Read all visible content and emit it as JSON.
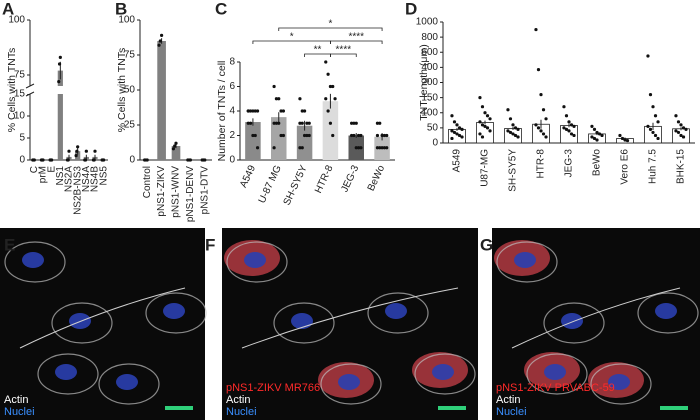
{
  "chart_data": [
    {
      "type": "bar",
      "label": "A",
      "y_label": "% Cells with TNTs",
      "categories": [
        "C",
        "prM",
        "E",
        "NS1",
        "NS2A",
        "NS2B-NS3",
        "NS4A",
        "NS4B",
        "NS5"
      ],
      "values": [
        0,
        0,
        0,
        77,
        0.7,
        2,
        0.7,
        0.7,
        0
      ],
      "errors": [
        0,
        0,
        0,
        4,
        0.5,
        0.8,
        0.5,
        0.5,
        0
      ],
      "points": [
        [
          0,
          0,
          0
        ],
        [
          0,
          0,
          0
        ],
        [
          0,
          0,
          0
        ],
        [
          72,
          80,
          83
        ],
        [
          0,
          0,
          2
        ],
        [
          1,
          2,
          3
        ],
        [
          0,
          0,
          2
        ],
        [
          0,
          0,
          2
        ],
        [
          0,
          0,
          0
        ]
      ],
      "color": "#808080",
      "ylim": [
        0,
        100
      ],
      "ysegments": [
        [
          0,
          15
        ],
        [
          70,
          100
        ]
      ],
      "yticks": [
        0,
        5,
        10,
        15,
        75,
        100
      ]
    },
    {
      "type": "bar",
      "label": "B",
      "y_label": "% Cells with TNTs",
      "categories": [
        "Control",
        "pNS1-ZIKV",
        "pNS1-WNV",
        "pNS1-DENV",
        "pNS1-DTV"
      ],
      "values": [
        0,
        85,
        10,
        0,
        0
      ],
      "errors": [
        0,
        2,
        1.5,
        0,
        0
      ],
      "points": [
        [
          0,
          0,
          0
        ],
        [
          82,
          85,
          89
        ],
        [
          8,
          10,
          12
        ],
        [
          0,
          0,
          0
        ],
        [
          0,
          0,
          0
        ]
      ],
      "color": "#808080",
      "ylim": [
        0,
        100
      ],
      "yticks": [
        0,
        25,
        50,
        75,
        100
      ]
    },
    {
      "type": "bar",
      "label": "C",
      "y_label": "Number of TNTs / cell",
      "categories": [
        "A549",
        "U-87 MG",
        "SH-SY5Y",
        "HTR-8",
        "JEG-3",
        "BeWo"
      ],
      "values": [
        3.1,
        3.5,
        2.8,
        4.8,
        2.0,
        1.9
      ],
      "errors": [
        0.3,
        0.4,
        0.4,
        0.6,
        0.2,
        0.3
      ],
      "points": [
        [
          4,
          4,
          4,
          4,
          4,
          4,
          3,
          2,
          2,
          1,
          3
        ],
        [
          6,
          5,
          5,
          4,
          4,
          3,
          3,
          3,
          2,
          2,
          1
        ],
        [
          5,
          4,
          4,
          3,
          3,
          3,
          3,
          2,
          2,
          2,
          1,
          1
        ],
        [
          8,
          7,
          6,
          6,
          5,
          5,
          4,
          3,
          2
        ],
        [
          3,
          3,
          3,
          2,
          2,
          2,
          2,
          1,
          1,
          1
        ],
        [
          3,
          3,
          2,
          2,
          2,
          2,
          1,
          1,
          1,
          1,
          1
        ]
      ],
      "colors": [
        "#8a8a8a",
        "#a6a6a6",
        "#909090",
        "#dcdcdc",
        "#5a5a5a",
        "#bdbdbd"
      ],
      "ylim": [
        0,
        8
      ],
      "yticks": [
        0,
        2,
        4,
        6,
        8
      ],
      "annotations": [
        {
          "label": "**",
          "groups": [
            "SH-SY5Y",
            "HTR-8"
          ]
        },
        {
          "label": "****",
          "groups": [
            "HTR-8",
            "JEG-3"
          ]
        },
        {
          "label": "*",
          "groups": [
            "A549",
            "HTR-8"
          ]
        },
        {
          "label": "****",
          "groups": [
            "HTR-8",
            "BeWo"
          ]
        },
        {
          "label": "*",
          "groups": [
            "U-87 MG",
            "BeWo"
          ]
        }
      ]
    },
    {
      "type": "bar",
      "label": "D",
      "y_label": "TNT length (μm)",
      "categories": [
        "A549",
        "U87-MG",
        "SH-SY5Y",
        "HTR-8",
        "JEG-3",
        "BeWo",
        "Vero E6",
        "Huh 7.5",
        "BHK-15"
      ],
      "values": [
        45,
        68,
        48,
        62,
        58,
        30,
        15,
        55,
        47
      ],
      "errors": [
        5,
        6,
        5,
        15,
        6,
        4,
        3,
        12,
        5
      ],
      "points": [
        [
          90,
          70,
          60,
          50,
          45,
          40,
          35,
          30,
          25,
          20,
          15
        ],
        [
          150,
          120,
          100,
          90,
          80,
          70,
          60,
          55,
          50,
          40,
          30,
          20
        ],
        [
          110,
          80,
          60,
          50,
          45,
          40,
          35,
          30,
          25,
          20
        ],
        [
          900,
          370,
          160,
          110,
          80,
          60,
          50,
          40,
          30,
          20
        ],
        [
          120,
          90,
          70,
          60,
          55,
          50,
          45,
          40,
          30,
          25
        ],
        [
          55,
          45,
          35,
          30,
          25,
          20,
          15,
          10
        ],
        [
          25,
          15,
          10,
          8
        ],
        [
          550,
          160,
          120,
          90,
          70,
          55,
          45,
          35,
          25,
          15
        ],
        [
          90,
          70,
          60,
          50,
          45,
          40,
          35,
          25,
          20
        ]
      ],
      "color": "#ffffff",
      "ylim": [
        0,
        1000
      ],
      "ysegments": [
        [
          0,
          200
        ],
        [
          200,
          1000
        ]
      ],
      "yticks": [
        0,
        50,
        100,
        150,
        200,
        400,
        600,
        800,
        1000
      ]
    }
  ],
  "images": [
    {
      "label": "E",
      "legend": [
        {
          "text": "Actin",
          "color": "#ffffff"
        },
        {
          "text": "Nuclei",
          "color": "#3a8fff"
        }
      ]
    },
    {
      "label": "F",
      "legend": [
        {
          "text": "pNS1-ZIKV MR766",
          "color": "#ff2a2a"
        },
        {
          "text": "Actin",
          "color": "#ffffff"
        },
        {
          "text": "Nuclei",
          "color": "#3a8fff"
        }
      ]
    },
    {
      "label": "G",
      "legend": [
        {
          "text": "pNS1-ZIKV PRVABC-59",
          "color": "#ff2a2a"
        },
        {
          "text": "Actin",
          "color": "#ffffff"
        },
        {
          "text": "Nuclei",
          "color": "#3a8fff"
        }
      ]
    }
  ]
}
